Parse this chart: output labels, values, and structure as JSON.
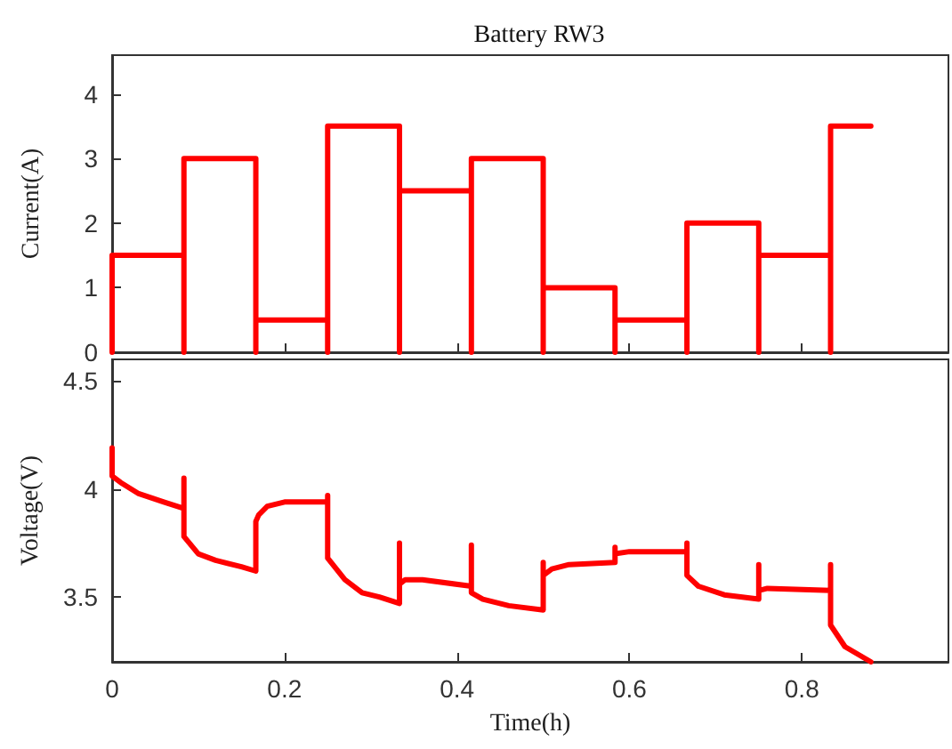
{
  "chart_data": [
    {
      "type": "line",
      "title": "Battery RW3",
      "ylabel": "Current(A)",
      "x": [
        0,
        0,
        0.0833,
        0.0833,
        0.0833,
        0.1667,
        0.1667,
        0.1667,
        0.25,
        0.25,
        0.25,
        0.3333,
        0.3333,
        0.3333,
        0.4167,
        0.4167,
        0.4167,
        0.5,
        0.5,
        0.5,
        0.5833,
        0.5833,
        0.5833,
        0.6667,
        0.6667,
        0.6667,
        0.75,
        0.75,
        0.75,
        0.8333,
        0.8333,
        0.8333,
        0.88
      ],
      "series": [
        {
          "color": "#ff0000",
          "values": [
            0,
            1.5,
            1.5,
            0,
            3,
            3,
            0,
            0.5,
            0.5,
            0,
            3.5,
            3.5,
            0,
            2.5,
            2.5,
            0,
            3,
            3,
            0,
            1,
            1,
            0,
            0.5,
            0.5,
            0,
            2,
            2,
            0,
            1.5,
            1.5,
            0,
            3.5,
            3.5
          ]
        }
      ],
      "xlim": [
        0,
        0.97
      ],
      "xticks": [
        0,
        0.2,
        0.4,
        0.6,
        0.8
      ],
      "ylim": [
        0,
        4.6
      ],
      "yticks": [
        0,
        1,
        2,
        3,
        4
      ],
      "tick_labels": "y",
      "grid": false,
      "marker": "none",
      "line_style": "solid"
    },
    {
      "type": "line",
      "xlabel": "Time(h)",
      "ylabel": "Voltage(V)",
      "x": [
        0,
        0,
        0.01,
        0.03,
        0.06,
        0.0833,
        0.0833,
        0.0833,
        0.1,
        0.12,
        0.15,
        0.1667,
        0.1667,
        0.17,
        0.18,
        0.2,
        0.25,
        0.25,
        0.25,
        0.27,
        0.29,
        0.31,
        0.3333,
        0.3333,
        0.3333,
        0.34,
        0.36,
        0.4167,
        0.4167,
        0.4167,
        0.43,
        0.46,
        0.5,
        0.5,
        0.5,
        0.51,
        0.53,
        0.5833,
        0.5833,
        0.5833,
        0.6,
        0.6667,
        0.6667,
        0.6667,
        0.68,
        0.71,
        0.75,
        0.75,
        0.75,
        0.76,
        0.8333,
        0.8333,
        0.8333,
        0.85,
        0.88
      ],
      "series": [
        {
          "color": "#ff0000",
          "values": [
            4.19,
            4.06,
            4.03,
            3.98,
            3.94,
            3.91,
            4.05,
            3.78,
            3.7,
            3.67,
            3.64,
            3.62,
            3.85,
            3.88,
            3.92,
            3.94,
            3.94,
            3.97,
            3.68,
            3.58,
            3.52,
            3.5,
            3.47,
            3.75,
            3.56,
            3.58,
            3.58,
            3.55,
            3.74,
            3.52,
            3.49,
            3.46,
            3.44,
            3.66,
            3.6,
            3.63,
            3.65,
            3.66,
            3.73,
            3.7,
            3.71,
            3.71,
            3.75,
            3.6,
            3.55,
            3.51,
            3.49,
            3.65,
            3.53,
            3.54,
            3.53,
            3.65,
            3.37,
            3.27,
            3.2
          ]
        }
      ],
      "xlim": [
        0,
        0.97
      ],
      "xticks": [
        0,
        0.2,
        0.4,
        0.6,
        0.8
      ],
      "ylim": [
        3.2,
        4.6
      ],
      "yticks": [
        3.5,
        4,
        4.5
      ],
      "grid": false,
      "marker": "none",
      "line_style": "solid"
    }
  ]
}
